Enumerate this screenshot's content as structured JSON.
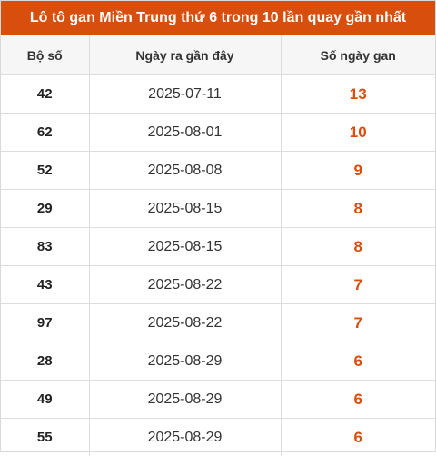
{
  "title": "Lô tô gan Miền Trung thứ 6 trong 10 lần quay gần nhất",
  "colors": {
    "accent": "#d84f0d",
    "header_bg": "#f6f6f6"
  },
  "table": {
    "headers": [
      "Bộ số",
      "Ngày ra gần đây",
      "Số ngày gan"
    ],
    "rows": [
      {
        "number": "42",
        "date": "2025-07-11",
        "days": "13"
      },
      {
        "number": "62",
        "date": "2025-08-01",
        "days": "10"
      },
      {
        "number": "52",
        "date": "2025-08-08",
        "days": "9"
      },
      {
        "number": "29",
        "date": "2025-08-15",
        "days": "8"
      },
      {
        "number": "83",
        "date": "2025-08-15",
        "days": "8"
      },
      {
        "number": "43",
        "date": "2025-08-22",
        "days": "7"
      },
      {
        "number": "97",
        "date": "2025-08-22",
        "days": "7"
      },
      {
        "number": "28",
        "date": "2025-08-29",
        "days": "6"
      },
      {
        "number": "49",
        "date": "2025-08-29",
        "days": "6"
      },
      {
        "number": "55",
        "date": "2025-08-29",
        "days": "6"
      }
    ]
  }
}
